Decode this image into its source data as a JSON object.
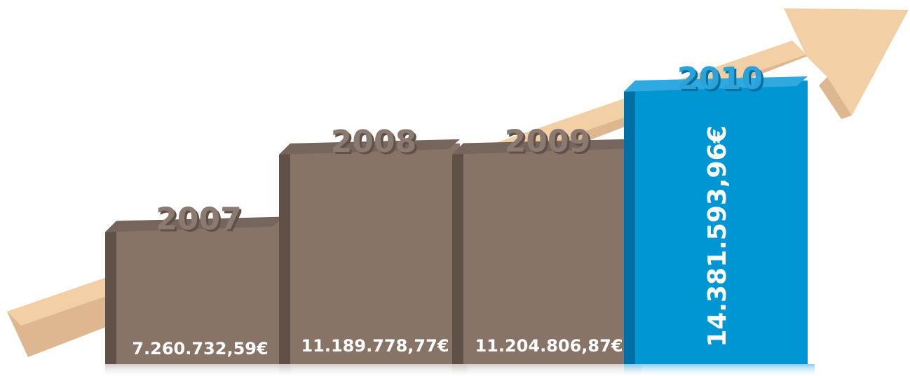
{
  "chart_data": {
    "type": "bar",
    "categories": [
      "2007",
      "2008",
      "2009",
      "2010"
    ],
    "values": [
      7260732.59,
      11189778.77,
      11204806.87,
      14381593.96
    ],
    "value_labels": [
      "7.260.732,59€",
      "11.189.778,77€",
      "11.204.806,87€",
      "14.381.593,96€"
    ],
    "highlight_category": "2010",
    "trend_arrow": "up-right",
    "colors": {
      "bar": "#887467",
      "bar_highlight": "#0096d4",
      "arrow": "#f2cfa4",
      "year_text": "#8a7a70",
      "year_text_highlight": "#2aa3da",
      "value_text": "#ffffff"
    }
  }
}
